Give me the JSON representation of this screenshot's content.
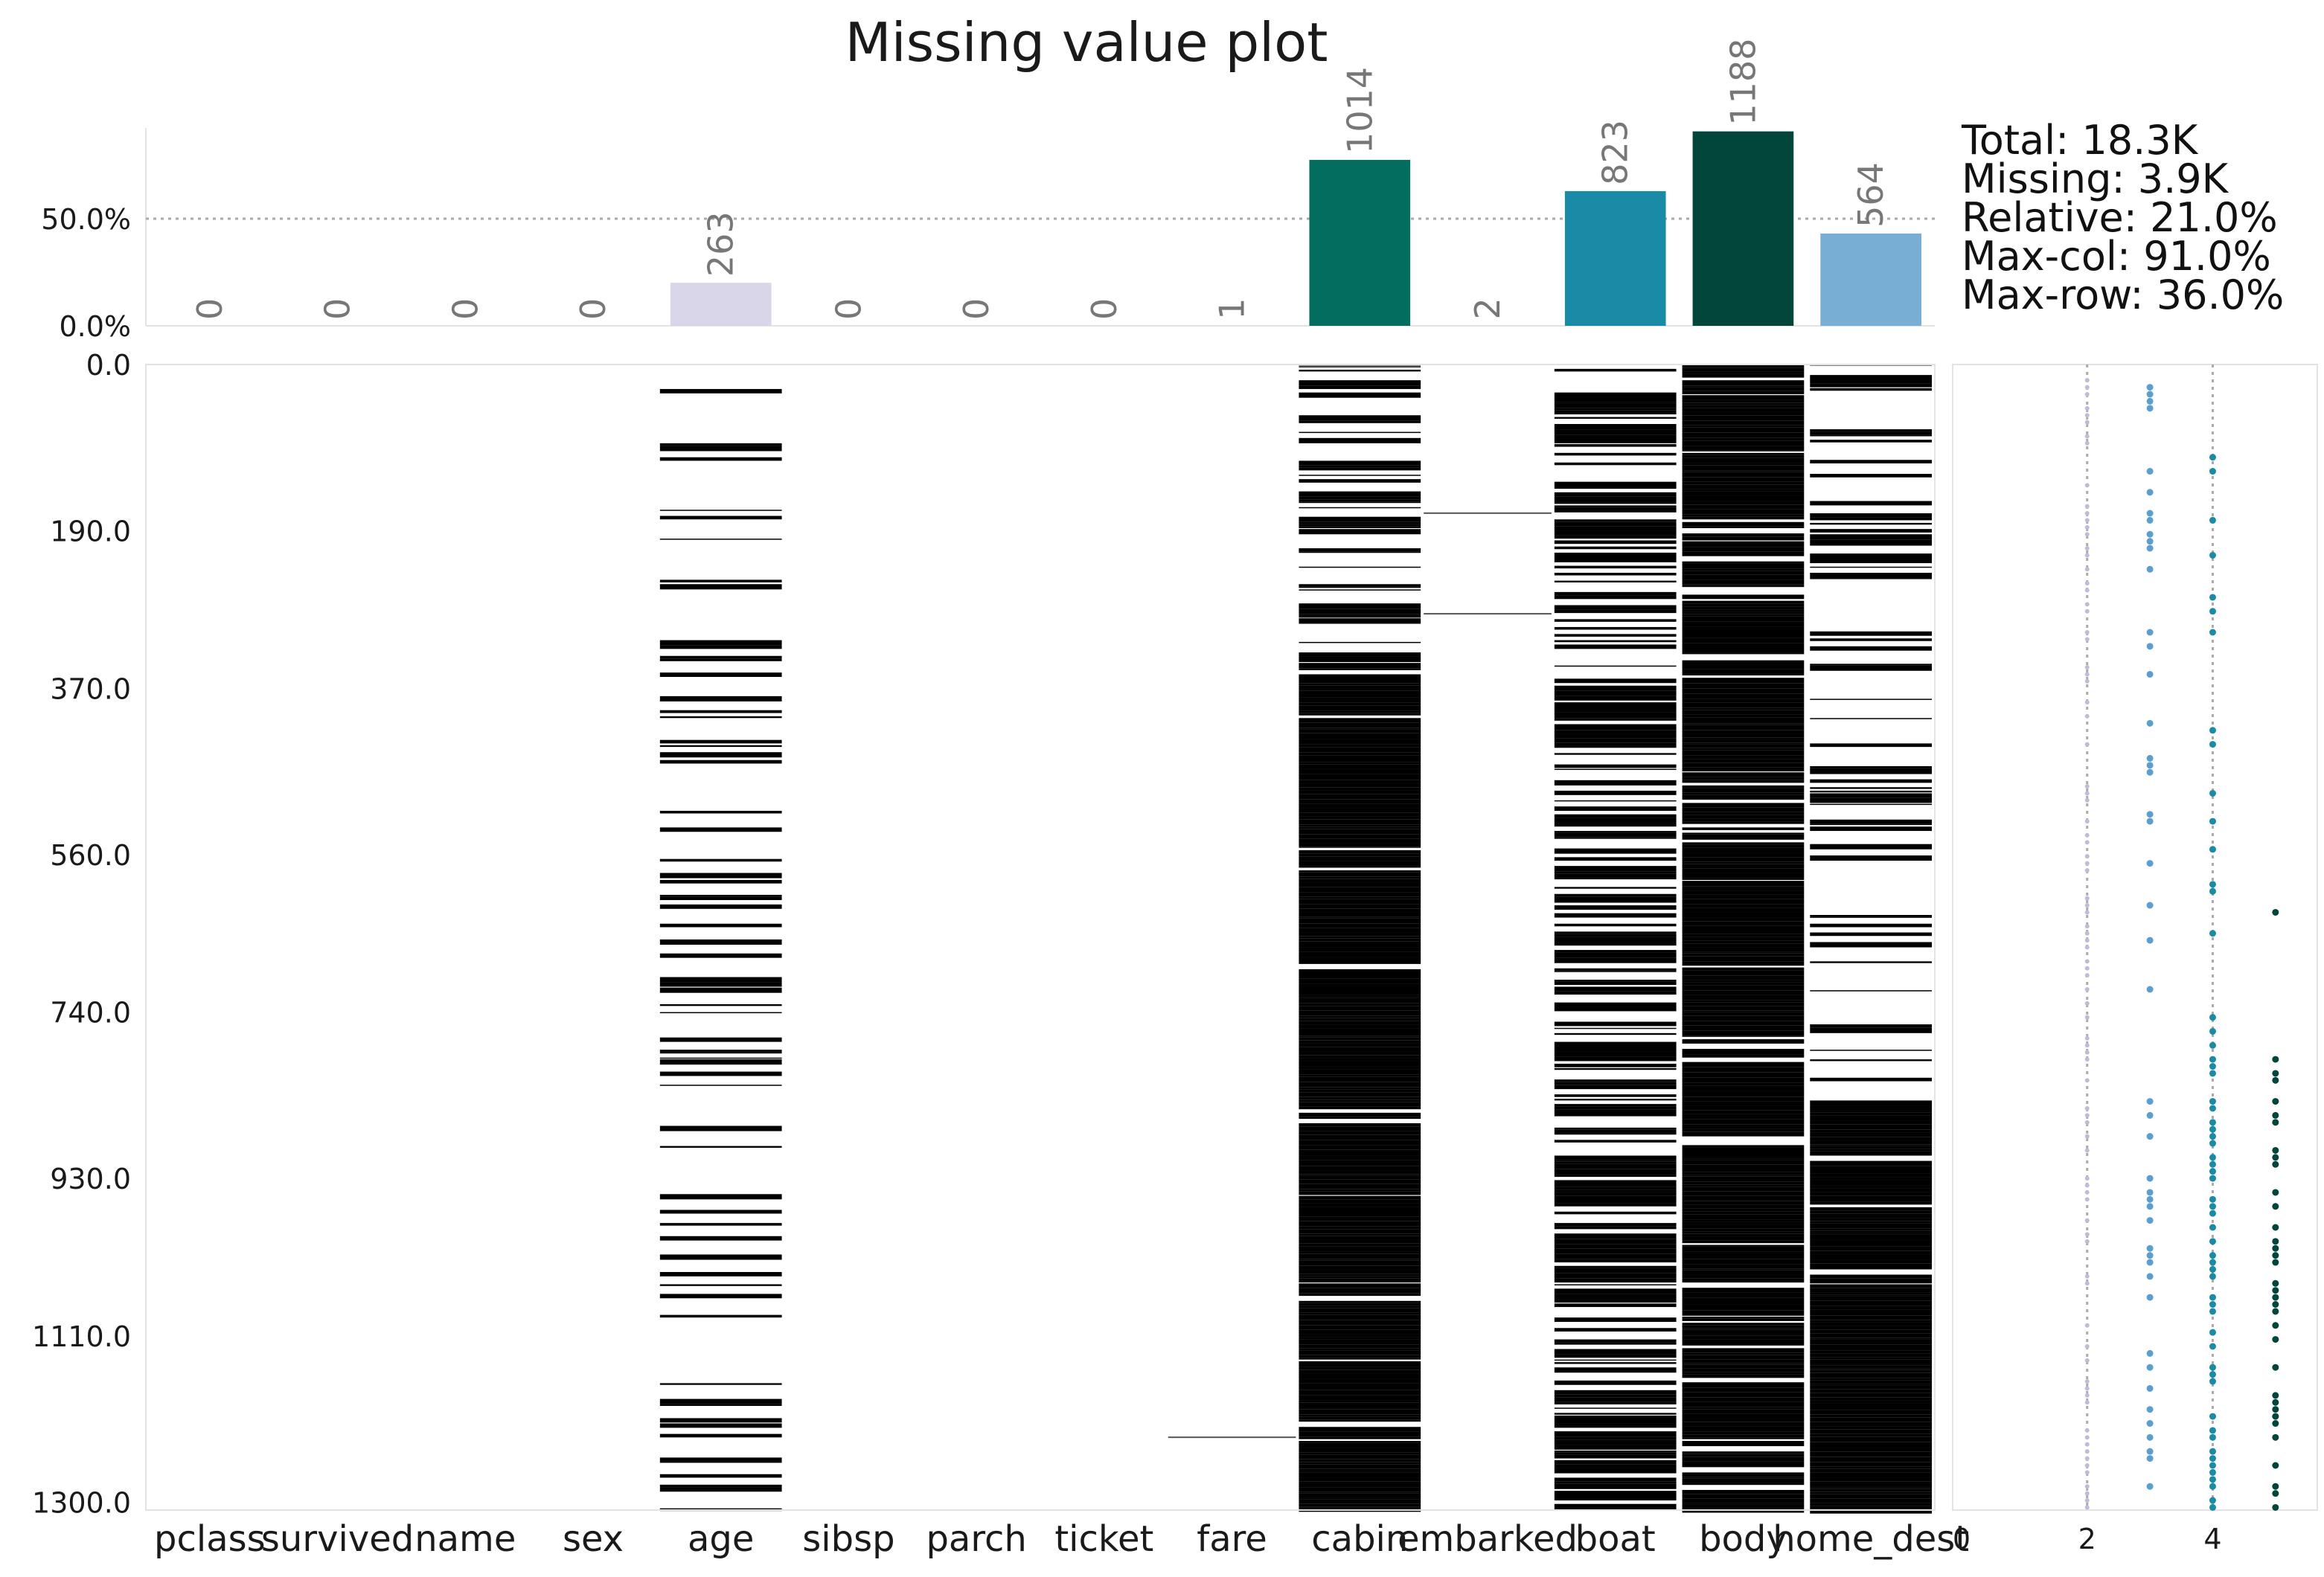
{
  "chart_data": {
    "type": "bar",
    "title": "Missing value plot",
    "n_rows": 1309,
    "categories": [
      "pclass",
      "survived",
      "name",
      "sex",
      "age",
      "sibsp",
      "parch",
      "ticket",
      "fare",
      "cabin",
      "embarked",
      "boat",
      "body",
      "home_dest"
    ],
    "missing_counts": [
      0,
      0,
      0,
      0,
      263,
      0,
      0,
      0,
      1,
      1014,
      2,
      823,
      1188,
      564
    ],
    "bar_colors": [
      "#d8d6e8",
      "#d8d6e8",
      "#d8d6e8",
      "#d8d6e8",
      "#d8d6e8",
      "#d8d6e8",
      "#d8d6e8",
      "#d8d6e8",
      "#d8d6e8",
      "#036d60",
      "#d8d6e8",
      "#1a8ba6",
      "#02453a",
      "#78aed3"
    ],
    "top_yticks": [
      "0.0%",
      "50.0%"
    ],
    "top_ytick_values": [
      0,
      50
    ],
    "reference_line": 50,
    "stats": [
      "Total: 18.3K",
      "Missing: 3.9K",
      "Relative: 21.0%",
      "Max-col: 91.0%",
      "Max-row: 36.0%"
    ],
    "matrix": {
      "yticks": [
        "0.0",
        "190.0",
        "370.0",
        "560.0",
        "740.0",
        "930.0",
        "1110.0",
        "1300.0"
      ],
      "ytick_values": [
        0,
        190,
        370,
        560,
        740,
        930,
        1110,
        1300
      ],
      "ylim": [
        0,
        1309
      ],
      "missing_color": "#000000",
      "density": [
        0,
        0,
        0,
        0,
        0.2,
        0,
        0,
        0,
        0,
        0.77,
        0,
        0.63,
        0.91,
        0.43
      ],
      "embarked_rows": [
        169,
        284
      ],
      "fare_rows": [
        1225
      ]
    },
    "row_panel": {
      "xticks": [
        "0",
        "2",
        "4"
      ],
      "xtick_values": [
        0,
        2,
        4
      ],
      "xlim": [
        0,
        5.5
      ],
      "guides": [
        2,
        4
      ],
      "series": [
        {
          "x": 2,
          "color": "#c0bcd8"
        },
        {
          "x": 3,
          "color": "#5a9fce"
        },
        {
          "x": 4,
          "color": "#1a8ba6"
        },
        {
          "x": 5,
          "color": "#02453a"
        }
      ]
    }
  }
}
